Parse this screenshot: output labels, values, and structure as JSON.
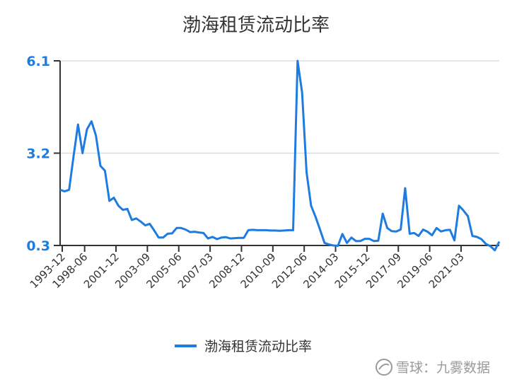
{
  "chart_data": {
    "type": "line",
    "title": "渤海租赁流动比率",
    "xlabel": "",
    "ylabel": "",
    "y_ticks": [
      0.3,
      3.2,
      6.1
    ],
    "y_tick_labels": [
      "0.3",
      "3.2",
      "6.1"
    ],
    "ylim": [
      0.3,
      6.1
    ],
    "x_tick_labels": [
      "1993-12",
      "1998-06",
      "2001-12",
      "2003-09",
      "2005-06",
      "2007-03",
      "2008-12",
      "2010-09",
      "2012-06",
      "2014-03",
      "2015-12",
      "2017-09",
      "2019-06",
      "2021-03"
    ],
    "x_tick_positions": [
      0,
      5,
      12,
      19,
      26,
      33,
      40,
      47,
      54,
      61,
      68,
      75,
      82,
      89
    ],
    "grid": "horizontal",
    "legend_position": "bottom-center",
    "series": [
      {
        "name": "渤海租赁流动比率",
        "color": "#1e7be0",
        "values": [
          2.05,
          2.0,
          2.05,
          3.1,
          4.1,
          3.2,
          3.95,
          4.2,
          3.75,
          2.8,
          2.65,
          1.7,
          1.8,
          1.55,
          1.42,
          1.45,
          1.1,
          1.15,
          1.05,
          0.93,
          0.98,
          0.77,
          0.55,
          0.55,
          0.67,
          0.68,
          0.85,
          0.85,
          0.8,
          0.72,
          0.73,
          0.71,
          0.69,
          0.52,
          0.57,
          0.5,
          0.55,
          0.56,
          0.52,
          0.53,
          0.54,
          0.54,
          0.78,
          0.79,
          0.78,
          0.78,
          0.78,
          0.77,
          0.77,
          0.76,
          0.77,
          0.78,
          0.78,
          6.1,
          5.1,
          2.6,
          1.55,
          1.2,
          0.8,
          0.38,
          0.33,
          0.3,
          0.29,
          0.66,
          0.38,
          0.55,
          0.44,
          0.44,
          0.51,
          0.51,
          0.44,
          0.45,
          1.3,
          0.85,
          0.75,
          0.74,
          0.8,
          2.1,
          0.67,
          0.69,
          0.6,
          0.8,
          0.73,
          0.62,
          0.85,
          0.74,
          0.78,
          0.79,
          0.46,
          1.55,
          1.4,
          1.22,
          0.6,
          0.57,
          0.5,
          0.35,
          0.28,
          0.15,
          0.42
        ]
      }
    ]
  },
  "watermark": "雪球：九雾数据",
  "colors": {
    "accent": "#1e7be0",
    "grid": "#dddddd",
    "axis": "#333333"
  }
}
